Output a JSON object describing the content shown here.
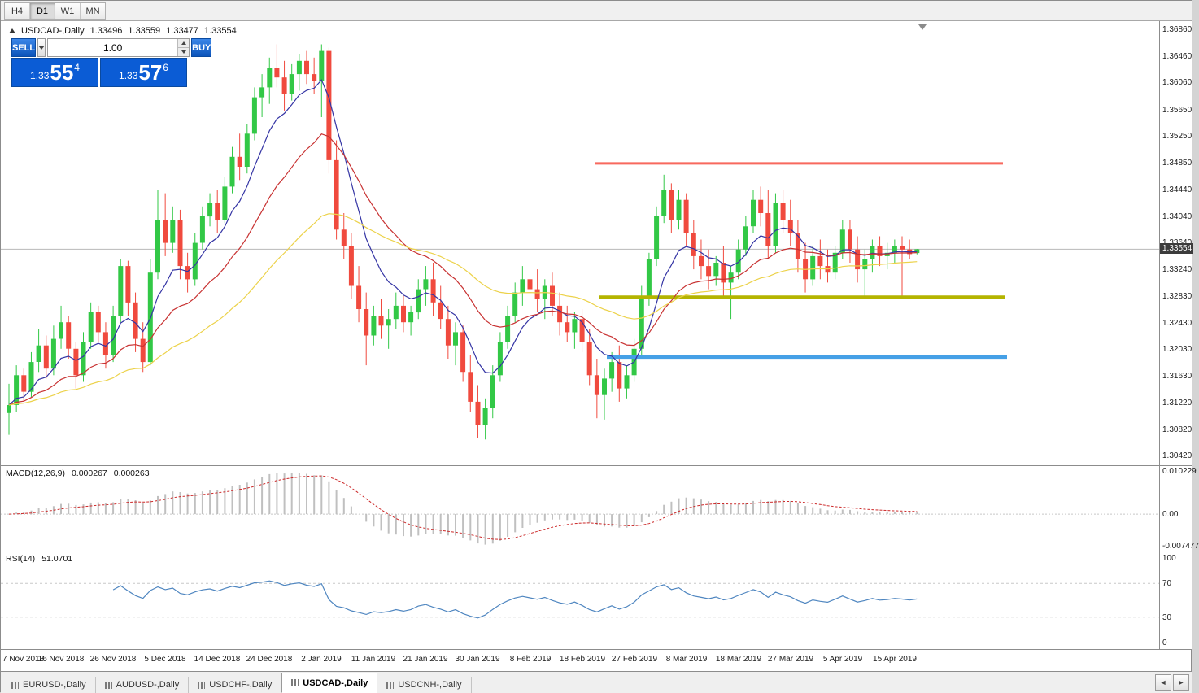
{
  "toolbar": {
    "timeframes": [
      {
        "label": "H4",
        "active": false
      },
      {
        "label": "D1",
        "active": true
      },
      {
        "label": "W1",
        "active": false
      },
      {
        "label": "MN",
        "active": false
      }
    ]
  },
  "header": {
    "symbol": "USDCAD-,Daily",
    "open": "1.33496",
    "high": "1.33559",
    "low": "1.33477",
    "close": "1.33554"
  },
  "trade_panel": {
    "sell_label": "SELL",
    "buy_label": "BUY",
    "volume": "1.00",
    "sell_price": {
      "base": "1.33",
      "big": "55",
      "sup": "4"
    },
    "buy_price": {
      "base": "1.33",
      "big": "57",
      "sup": "6"
    }
  },
  "tabs": [
    {
      "label": "EURUSD-,Daily",
      "active": false
    },
    {
      "label": "AUDUSD-,Daily",
      "active": false
    },
    {
      "label": "USDCHF-,Daily",
      "active": false
    },
    {
      "label": "USDCAD-,Daily",
      "active": true
    },
    {
      "label": "USDCNH-,Daily",
      "active": false
    }
  ],
  "tab_nav": {
    "left": "◄",
    "right": "►"
  },
  "chart_data": {
    "type": "candlestick",
    "symbol": "USDCAD",
    "timeframe": "Daily",
    "ylim": [
      1.3029,
      1.37
    ],
    "current_price": 1.33554,
    "current_price_label": "1.33554",
    "price_axis_labels": [
      "1.36860",
      "1.36460",
      "1.36060",
      "1.35650",
      "1.35250",
      "1.34850",
      "1.34440",
      "1.34040",
      "1.33640",
      "1.33240",
      "1.32830",
      "1.32430",
      "1.32030",
      "1.31630",
      "1.31220",
      "1.30820",
      "1.30420"
    ],
    "dates": [
      "7 Nov 2018",
      "16 Nov 2018",
      "26 Nov 2018",
      "5 Dec 2018",
      "14 Dec 2018",
      "24 Dec 2018",
      "2 Jan 2019",
      "11 Jan 2019",
      "21 Jan 2019",
      "30 Jan 2019",
      "8 Feb 2019",
      "18 Feb 2019",
      "27 Feb 2019",
      "8 Mar 2019",
      "18 Mar 2019",
      "27 Mar 2019",
      "5 Apr 2019",
      "15 Apr 2019"
    ],
    "date_label_interval": 7,
    "colors": {
      "up": "#32c846",
      "down": "#f04a3e",
      "price_line": "#b8b8b8",
      "marker": "#8a8a8a"
    },
    "moving_averages": [
      {
        "period": 8,
        "color": "#3434a4"
      },
      {
        "period": 20,
        "color": "#c83232"
      },
      {
        "period": 45,
        "color": "#ecd24a"
      }
    ],
    "hlines": [
      {
        "price": 1.3485,
        "x1": 730,
        "x2": 1232,
        "color": "#f8695e",
        "width": 3
      },
      {
        "price": 1.3283,
        "x1": 735,
        "x2": 1235,
        "color": "#b4b400",
        "width": 4
      },
      {
        "price": 1.3193,
        "x1": 745,
        "x2": 1237,
        "color": "#45a0e6",
        "width": 5
      }
    ],
    "macd": {
      "label": "MACD(12,26,9)",
      "value1": "0.000267",
      "value2": "0.000263",
      "fast": 12,
      "slow": 26,
      "signal": 9,
      "scale_max": 0.010229,
      "scale_min": -0.007477,
      "axis_labels": [
        "0.010229",
        "0.00",
        "-0.007477"
      ],
      "hist_color": "#c0c0c0",
      "signal_color": "#cc2a2a",
      "zero_color": "#c8c8c8"
    },
    "rsi": {
      "label": "RSI(14)",
      "value": "51.0701",
      "period": 14,
      "levels": [
        100,
        70,
        30,
        0
      ],
      "dashed_levels": [
        70,
        30
      ],
      "color": "#4f86c0",
      "level_color": "#c8c8c8"
    },
    "candles": [
      [
        1.3108,
        1.3152,
        1.3075,
        1.312
      ],
      [
        1.312,
        1.318,
        1.311,
        1.3165
      ],
      [
        1.3165,
        1.3175,
        1.3125,
        1.314
      ],
      [
        1.314,
        1.32,
        1.3132,
        1.3185
      ],
      [
        1.3185,
        1.3235,
        1.317,
        1.321
      ],
      [
        1.321,
        1.3225,
        1.316,
        1.3175
      ],
      [
        1.3175,
        1.324,
        1.3165,
        1.322
      ],
      [
        1.322,
        1.327,
        1.3205,
        1.3245
      ],
      [
        1.3245,
        1.3255,
        1.319,
        1.3205
      ],
      [
        1.3205,
        1.3215,
        1.3145,
        1.3165
      ],
      [
        1.3165,
        1.323,
        1.3155,
        1.3215
      ],
      [
        1.3215,
        1.3275,
        1.3205,
        1.326
      ],
      [
        1.326,
        1.327,
        1.3215,
        1.323
      ],
      [
        1.323,
        1.3245,
        1.3175,
        1.3195
      ],
      [
        1.3195,
        1.327,
        1.3185,
        1.3255
      ],
      [
        1.3255,
        1.334,
        1.3245,
        1.333
      ],
      [
        1.333,
        1.3338,
        1.3255,
        1.3275
      ],
      [
        1.3275,
        1.329,
        1.32,
        1.322
      ],
      [
        1.322,
        1.3245,
        1.317,
        1.3185
      ],
      [
        1.3185,
        1.334,
        1.318,
        1.332
      ],
      [
        1.332,
        1.3445,
        1.331,
        1.34
      ],
      [
        1.34,
        1.344,
        1.3345,
        1.3365
      ],
      [
        1.3365,
        1.342,
        1.335,
        1.34
      ],
      [
        1.34,
        1.3415,
        1.331,
        1.333
      ],
      [
        1.333,
        1.335,
        1.329,
        1.331
      ],
      [
        1.331,
        1.338,
        1.33,
        1.3365
      ],
      [
        1.3365,
        1.342,
        1.3355,
        1.3405
      ],
      [
        1.3405,
        1.344,
        1.339,
        1.3425
      ],
      [
        1.3425,
        1.3445,
        1.338,
        1.34
      ],
      [
        1.34,
        1.3465,
        1.3395,
        1.345
      ],
      [
        1.345,
        1.351,
        1.344,
        1.3495
      ],
      [
        1.3495,
        1.353,
        1.346,
        1.348
      ],
      [
        1.348,
        1.3545,
        1.347,
        1.353
      ],
      [
        1.353,
        1.36,
        1.352,
        1.3585
      ],
      [
        1.3585,
        1.362,
        1.3555,
        1.36
      ],
      [
        1.36,
        1.3645,
        1.3575,
        1.363
      ],
      [
        1.363,
        1.3665,
        1.36,
        1.3615
      ],
      [
        1.3615,
        1.364,
        1.3565,
        1.359
      ],
      [
        1.359,
        1.3635,
        1.358,
        1.362
      ],
      [
        1.362,
        1.365,
        1.3595,
        1.364
      ],
      [
        1.364,
        1.3655,
        1.3605,
        1.362
      ],
      [
        1.362,
        1.3645,
        1.359,
        1.361
      ],
      [
        1.361,
        1.3665,
        1.3555,
        1.3655
      ],
      [
        1.3655,
        1.366,
        1.347,
        1.349
      ],
      [
        1.349,
        1.352,
        1.337,
        1.3385
      ],
      [
        1.3385,
        1.341,
        1.334,
        1.336
      ],
      [
        1.336,
        1.338,
        1.328,
        1.33
      ],
      [
        1.33,
        1.333,
        1.3245,
        1.3265
      ],
      [
        1.3265,
        1.329,
        1.318,
        1.3225
      ],
      [
        1.3225,
        1.327,
        1.321,
        1.3255
      ],
      [
        1.3255,
        1.328,
        1.322,
        1.324
      ],
      [
        1.324,
        1.3265,
        1.3205,
        1.325
      ],
      [
        1.325,
        1.329,
        1.3235,
        1.327
      ],
      [
        1.327,
        1.3285,
        1.323,
        1.3245
      ],
      [
        1.3245,
        1.327,
        1.3225,
        1.326
      ],
      [
        1.326,
        1.331,
        1.325,
        1.3295
      ],
      [
        1.3295,
        1.333,
        1.327,
        1.331
      ],
      [
        1.331,
        1.3335,
        1.3255,
        1.3275
      ],
      [
        1.3275,
        1.33,
        1.3235,
        1.325
      ],
      [
        1.325,
        1.327,
        1.319,
        1.321
      ],
      [
        1.321,
        1.3245,
        1.318,
        1.323
      ],
      [
        1.323,
        1.324,
        1.3155,
        1.317
      ],
      [
        1.317,
        1.3195,
        1.311,
        1.3125
      ],
      [
        1.3125,
        1.315,
        1.307,
        1.309
      ],
      [
        1.309,
        1.313,
        1.3068,
        1.3115
      ],
      [
        1.3115,
        1.318,
        1.31,
        1.3165
      ],
      [
        1.3165,
        1.323,
        1.3155,
        1.3215
      ],
      [
        1.3215,
        1.327,
        1.3205,
        1.3255
      ],
      [
        1.3255,
        1.3305,
        1.3245,
        1.329
      ],
      [
        1.329,
        1.333,
        1.327,
        1.331
      ],
      [
        1.331,
        1.334,
        1.328,
        1.3295
      ],
      [
        1.3295,
        1.3325,
        1.326,
        1.328
      ],
      [
        1.328,
        1.331,
        1.325,
        1.33
      ],
      [
        1.33,
        1.332,
        1.3255,
        1.327
      ],
      [
        1.327,
        1.329,
        1.3225,
        1.3245
      ],
      [
        1.3245,
        1.327,
        1.3215,
        1.323
      ],
      [
        1.323,
        1.326,
        1.3205,
        1.325
      ],
      [
        1.325,
        1.3265,
        1.32,
        1.3215
      ],
      [
        1.3215,
        1.3235,
        1.315,
        1.3165
      ],
      [
        1.3165,
        1.319,
        1.31,
        1.3135
      ],
      [
        1.3135,
        1.3175,
        1.3098,
        1.316
      ],
      [
        1.316,
        1.32,
        1.314,
        1.3185
      ],
      [
        1.3185,
        1.321,
        1.3125,
        1.3145
      ],
      [
        1.3145,
        1.318,
        1.313,
        1.3165
      ],
      [
        1.3165,
        1.322,
        1.3155,
        1.3205
      ],
      [
        1.3205,
        1.33,
        1.3195,
        1.3285
      ],
      [
        1.3285,
        1.335,
        1.327,
        1.334
      ],
      [
        1.334,
        1.342,
        1.333,
        1.3405
      ],
      [
        1.3405,
        1.3468,
        1.3395,
        1.3445
      ],
      [
        1.3445,
        1.3455,
        1.338,
        1.34
      ],
      [
        1.34,
        1.3445,
        1.3385,
        1.343
      ],
      [
        1.343,
        1.344,
        1.336,
        1.338
      ],
      [
        1.338,
        1.34,
        1.3325,
        1.3345
      ],
      [
        1.3345,
        1.337,
        1.331,
        1.333
      ],
      [
        1.333,
        1.3355,
        1.3295,
        1.3315
      ],
      [
        1.3315,
        1.3345,
        1.33,
        1.3335
      ],
      [
        1.3335,
        1.336,
        1.3285,
        1.3305
      ],
      [
        1.3305,
        1.333,
        1.325,
        1.332
      ],
      [
        1.332,
        1.337,
        1.331,
        1.3355
      ],
      [
        1.3355,
        1.3405,
        1.3345,
        1.339
      ],
      [
        1.339,
        1.3445,
        1.338,
        1.343
      ],
      [
        1.343,
        1.345,
        1.339,
        1.341
      ],
      [
        1.341,
        1.3445,
        1.334,
        1.336
      ],
      [
        1.336,
        1.344,
        1.335,
        1.3425
      ],
      [
        1.3425,
        1.3445,
        1.338,
        1.34
      ],
      [
        1.34,
        1.343,
        1.336,
        1.338
      ],
      [
        1.338,
        1.34,
        1.332,
        1.334
      ],
      [
        1.334,
        1.3365,
        1.329,
        1.331
      ],
      [
        1.331,
        1.336,
        1.33,
        1.3345
      ],
      [
        1.3345,
        1.337,
        1.331,
        1.333
      ],
      [
        1.333,
        1.3355,
        1.3305,
        1.332
      ],
      [
        1.332,
        1.336,
        1.331,
        1.335
      ],
      [
        1.335,
        1.34,
        1.334,
        1.3385
      ],
      [
        1.3385,
        1.34,
        1.3335,
        1.3355
      ],
      [
        1.3355,
        1.3375,
        1.3305,
        1.3325
      ],
      [
        1.3325,
        1.3355,
        1.3285,
        1.334
      ],
      [
        1.334,
        1.337,
        1.332,
        1.336
      ],
      [
        1.336,
        1.3375,
        1.333,
        1.3345
      ],
      [
        1.3345,
        1.3365,
        1.3325,
        1.335
      ],
      [
        1.335,
        1.337,
        1.3335,
        1.336
      ],
      [
        1.336,
        1.3375,
        1.328,
        1.3355
      ],
      [
        1.3355,
        1.337,
        1.334,
        1.3348
      ],
      [
        1.33496,
        1.33559,
        1.33477,
        1.33554
      ]
    ]
  }
}
